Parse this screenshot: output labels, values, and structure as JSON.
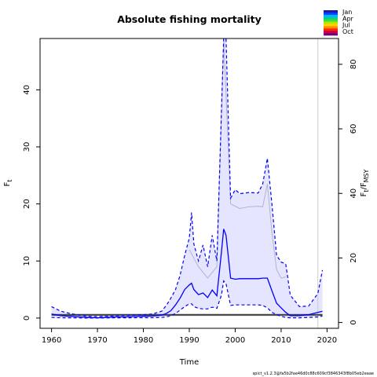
{
  "chart_data": {
    "type": "line",
    "title": "Absolute fishing mortality",
    "xlabel": "Time",
    "ylabel_left_main": "F",
    "ylabel_left_sub": "t",
    "ylabel_right_main": "F",
    "ylabel_right_sub": "t",
    "ylabel_right_tail_main": "/F",
    "ylabel_right_tail_sub": "MSY",
    "xlim": [
      1957.5,
      2022.5
    ],
    "ylim_left": [
      -1.8,
      49
    ],
    "ylim_right": [
      -1.8,
      88
    ],
    "x_ticks": [
      "1960",
      "1970",
      "1980",
      "1990",
      "2000",
      "2010",
      "2020"
    ],
    "x_tick_values": [
      1960,
      1970,
      1980,
      1990,
      2000,
      2010,
      2020
    ],
    "y_ticks_left": [
      "0",
      "10",
      "20",
      "30",
      "40"
    ],
    "y_tick_values_left": [
      0,
      10,
      20,
      30,
      40
    ],
    "y_ticks_right": [
      "0",
      "20",
      "40",
      "60",
      "80"
    ],
    "y_tick_values_right": [
      0,
      20,
      40,
      60,
      80
    ],
    "reference_vline_x": 2018,
    "legend": {
      "placement": "top-right",
      "labels": [
        "Jan",
        "Apr",
        "Jul",
        "Oct"
      ],
      "colors": [
        "#1a1aa6",
        "#0040ff",
        "#00b4ff",
        "#00d28c",
        "#3cdc3c",
        "#b4e600",
        "#ffd200",
        "#ff8c00",
        "#ff2800",
        "#c8004b",
        "#780078"
      ]
    },
    "footer": "spict_v1.2.3@fa5b2fae46d0c88c609cf3846343f8b05eb2eaae",
    "colors": {
      "estimate": "#0000ff",
      "ci_fill": "#e5e5ff",
      "ci_line": "#0000ff",
      "ci_grey": "#b4b4c8",
      "fmsy_line": "#444444",
      "fmsy_band": "#c8c8c8",
      "vline": "#cccccc"
    },
    "series": [
      {
        "name": "",
        "role": "estimate",
        "x": [
          1960,
          1962,
          1964,
          1966,
          1968,
          1970,
          1972,
          1974,
          1976,
          1978,
          1980,
          1982,
          1984,
          1985,
          1986,
          1987,
          1988,
          1989,
          1990,
          1990.5,
          1991,
          1992,
          1993,
          1994,
          1995,
          1996,
          1997,
          1997.5,
          1998,
          1999,
          2000,
          2001,
          2003,
          2005,
          2006,
          2007,
          2008,
          2009,
          2010,
          2011,
          2012,
          2014,
          2016,
          2018,
          2019
        ],
        "y": [
          0.7,
          0.4,
          0.3,
          0.2,
          0.1,
          0.05,
          0.1,
          0.2,
          0.2,
          0.25,
          0.3,
          0.35,
          0.5,
          0.8,
          1.3,
          2.3,
          3.5,
          5.0,
          5.8,
          6.1,
          5.0,
          4.1,
          4.4,
          3.6,
          4.9,
          3.9,
          11.5,
          15.6,
          14.5,
          7.0,
          6.8,
          6.9,
          6.9,
          6.9,
          7.0,
          7.0,
          4.8,
          2.6,
          1.8,
          1.0,
          0.4,
          0.4,
          0.6,
          1.0,
          1.2
        ]
      },
      {
        "name": "",
        "role": "upper_ci",
        "x": [
          1960,
          1962,
          1964,
          1966,
          1968,
          1970,
          1972,
          1974,
          1976,
          1978,
          1980,
          1982,
          1984,
          1985,
          1986,
          1987,
          1988,
          1989,
          1990,
          1990.5,
          1991,
          1992,
          1993,
          1994,
          1995,
          1996,
          1997,
          1997.5,
          1998,
          1999,
          2000,
          2001,
          2003,
          2005,
          2006,
          2007,
          2008,
          2009,
          2010,
          2011,
          2012,
          2014,
          2016,
          2018,
          2019
        ],
        "y": [
          2.0,
          1.2,
          0.8,
          0.5,
          0.3,
          0.25,
          0.3,
          0.4,
          0.45,
          0.5,
          0.6,
          0.7,
          1.2,
          2.2,
          3.5,
          5.0,
          7.5,
          11.0,
          14.0,
          18.5,
          13.0,
          10.0,
          12.8,
          9.0,
          14.5,
          10.0,
          36.0,
          60.0,
          55.0,
          21.0,
          22.5,
          21.8,
          22.0,
          21.9,
          23.5,
          28.0,
          20.0,
          11.0,
          9.8,
          9.5,
          4.0,
          2.0,
          2.1,
          4.3,
          8.4
        ]
      },
      {
        "name": "",
        "role": "lower_ci",
        "x": [
          1960,
          1962,
          1964,
          1966,
          1968,
          1970,
          1972,
          1974,
          1976,
          1978,
          1980,
          1982,
          1984,
          1985,
          1986,
          1987,
          1988,
          1989,
          1990,
          1990.5,
          1991,
          1992,
          1993,
          1994,
          1995,
          1996,
          1997,
          1997.5,
          1998,
          1999,
          2000,
          2001,
          2003,
          2005,
          2006,
          2007,
          2008,
          2009,
          2010,
          2011,
          2012,
          2014,
          2016,
          2018,
          2019
        ],
        "y": [
          0.1,
          0.05,
          0.05,
          0.02,
          0.01,
          0.01,
          0.02,
          0.05,
          0.05,
          0.05,
          0.06,
          0.06,
          0.1,
          0.2,
          0.4,
          0.8,
          1.4,
          2.0,
          2.5,
          2.5,
          2.0,
          1.7,
          1.6,
          1.6,
          1.9,
          1.7,
          4.0,
          6.5,
          6.0,
          2.2,
          2.3,
          2.3,
          2.3,
          2.3,
          2.2,
          1.8,
          1.0,
          0.6,
          0.3,
          0.1,
          0.05,
          0.05,
          0.1,
          0.2,
          0.35
        ]
      },
      {
        "name": "",
        "role": "grey_ci",
        "x": [
          1990,
          1992,
          1994,
          1996,
          1997.5,
          1999,
          2001,
          2003,
          2005,
          2006,
          2007,
          2008,
          2009,
          2010,
          2011
        ],
        "y": [
          12.0,
          9.0,
          7.0,
          9.0,
          50.0,
          20.0,
          19.2,
          19.5,
          19.6,
          19.5,
          23.5,
          15.0,
          8.5,
          7.0,
          7.2
        ]
      },
      {
        "name": "",
        "role": "fmsy",
        "x": [
          1960,
          2019
        ],
        "y": [
          0.55,
          0.55
        ]
      }
    ],
    "fmsy_band": [
      0.35,
      0.75
    ]
  }
}
